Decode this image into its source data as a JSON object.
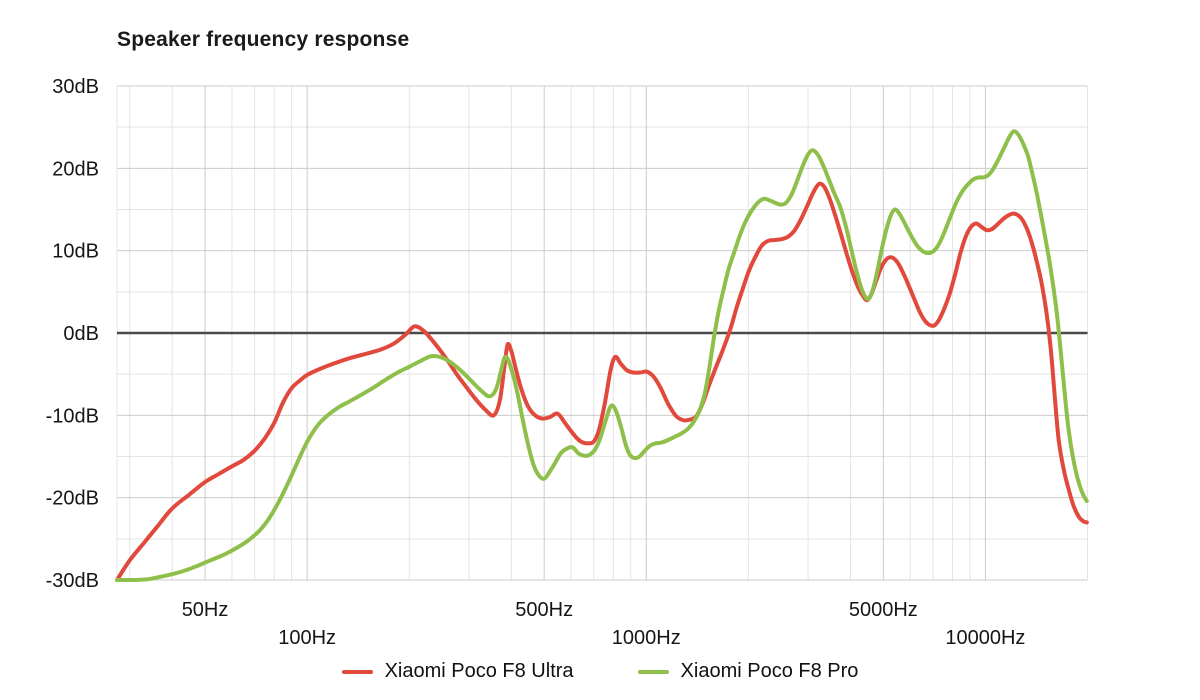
{
  "chart_data": {
    "type": "line",
    "title": "Speaker frequency response",
    "background": "#ffffff",
    "text_color": "#161616",
    "grid_minor_color": "#e4e4e4",
    "grid_major_color": "#cbcbcb",
    "zero_line_color": "#4a4a4a",
    "legend_position": "bottom",
    "x_axis": {
      "scale": "log",
      "unit": "Hz",
      "min": 27.5,
      "max": 20000,
      "labeled_ticks": [
        {
          "label": "50Hz",
          "value": 50,
          "row": 1
        },
        {
          "label": "100Hz",
          "value": 100,
          "row": 2
        },
        {
          "label": "500Hz",
          "value": 500,
          "row": 1
        },
        {
          "label": "1000Hz",
          "value": 1000,
          "row": 2
        },
        {
          "label": "5000Hz",
          "value": 5000,
          "row": 1
        },
        {
          "label": "10000Hz",
          "value": 10000,
          "row": 2
        }
      ],
      "minor_gridlines": [
        30,
        40,
        60,
        70,
        80,
        90,
        200,
        300,
        400,
        600,
        700,
        800,
        900,
        2000,
        3000,
        4000,
        6000,
        7000,
        8000,
        9000,
        20000
      ]
    },
    "y_axis": {
      "unit": "dB",
      "min": -30,
      "max": 30,
      "labeled_ticks": [
        {
          "label": "30dB",
          "value": 30
        },
        {
          "label": "20dB",
          "value": 20
        },
        {
          "label": "10dB",
          "value": 10
        },
        {
          "label": "0dB",
          "value": 0
        },
        {
          "label": "-10dB",
          "value": -10
        },
        {
          "label": "-20dB",
          "value": -20
        },
        {
          "label": "-30dB",
          "value": -30
        }
      ],
      "minor_gridlines": [
        25,
        15,
        5,
        -5,
        -15,
        -25
      ]
    },
    "series": [
      {
        "name": "Xiaomi Poco F8 Ultra",
        "color": "#e0493c",
        "points": [
          [
            27.5,
            -30
          ],
          [
            30,
            -27.6
          ],
          [
            33,
            -25.5
          ],
          [
            36,
            -23.6
          ],
          [
            40,
            -21.3
          ],
          [
            45,
            -19.6
          ],
          [
            50,
            -18.1
          ],
          [
            55,
            -17.1
          ],
          [
            60,
            -16.2
          ],
          [
            65,
            -15.4
          ],
          [
            70,
            -14.3
          ],
          [
            75,
            -12.8
          ],
          [
            80,
            -10.9
          ],
          [
            85,
            -8.4
          ],
          [
            90,
            -6.7
          ],
          [
            95,
            -5.8
          ],
          [
            100,
            -5.1
          ],
          [
            110,
            -4.3
          ],
          [
            120,
            -3.7
          ],
          [
            135,
            -3.0
          ],
          [
            150,
            -2.5
          ],
          [
            165,
            -2.0
          ],
          [
            180,
            -1.3
          ],
          [
            195,
            -0.2
          ],
          [
            207,
            0.8
          ],
          [
            220,
            0.3
          ],
          [
            235,
            -1.0
          ],
          [
            255,
            -2.9
          ],
          [
            275,
            -4.9
          ],
          [
            295,
            -6.6
          ],
          [
            315,
            -8.1
          ],
          [
            335,
            -9.3
          ],
          [
            355,
            -10.0
          ],
          [
            370,
            -8.2
          ],
          [
            382,
            -4.0
          ],
          [
            390,
            -1.4
          ],
          [
            400,
            -2.2
          ],
          [
            412,
            -4.3
          ],
          [
            428,
            -6.8
          ],
          [
            448,
            -8.9
          ],
          [
            470,
            -10.0
          ],
          [
            495,
            -10.4
          ],
          [
            520,
            -10.2
          ],
          [
            548,
            -9.8
          ],
          [
            575,
            -10.9
          ],
          [
            600,
            -11.9
          ],
          [
            625,
            -12.8
          ],
          [
            650,
            -13.3
          ],
          [
            675,
            -13.4
          ],
          [
            700,
            -13.2
          ],
          [
            725,
            -11.8
          ],
          [
            755,
            -8.5
          ],
          [
            785,
            -4.5
          ],
          [
            810,
            -2.9
          ],
          [
            840,
            -3.7
          ],
          [
            875,
            -4.5
          ],
          [
            915,
            -4.8
          ],
          [
            960,
            -4.8
          ],
          [
            1005,
            -4.7
          ],
          [
            1050,
            -5.3
          ],
          [
            1100,
            -6.6
          ],
          [
            1160,
            -8.6
          ],
          [
            1225,
            -10.1
          ],
          [
            1290,
            -10.6
          ],
          [
            1350,
            -10.5
          ],
          [
            1405,
            -10.1
          ],
          [
            1465,
            -8.6
          ],
          [
            1530,
            -6.4
          ],
          [
            1600,
            -4.3
          ],
          [
            1680,
            -2.1
          ],
          [
            1770,
            0.5
          ],
          [
            1850,
            3.2
          ],
          [
            1930,
            5.5
          ],
          [
            2010,
            7.6
          ],
          [
            2100,
            9.3
          ],
          [
            2190,
            10.6
          ],
          [
            2290,
            11.2
          ],
          [
            2400,
            11.3
          ],
          [
            2510,
            11.4
          ],
          [
            2620,
            11.7
          ],
          [
            2730,
            12.4
          ],
          [
            2850,
            13.7
          ],
          [
            2980,
            15.4
          ],
          [
            3110,
            17.1
          ],
          [
            3230,
            18.1
          ],
          [
            3340,
            17.8
          ],
          [
            3460,
            16.5
          ],
          [
            3600,
            14.4
          ],
          [
            3750,
            12.0
          ],
          [
            3900,
            9.6
          ],
          [
            4060,
            7.3
          ],
          [
            4220,
            5.5
          ],
          [
            4370,
            4.4
          ],
          [
            4490,
            4.0
          ],
          [
            4620,
            4.8
          ],
          [
            4760,
            6.3
          ],
          [
            4910,
            7.8
          ],
          [
            5070,
            8.8
          ],
          [
            5230,
            9.2
          ],
          [
            5390,
            9.0
          ],
          [
            5560,
            8.3
          ],
          [
            5750,
            7.1
          ],
          [
            5950,
            5.7
          ],
          [
            6160,
            4.2
          ],
          [
            6380,
            2.7
          ],
          [
            6600,
            1.6
          ],
          [
            6830,
            1.0
          ],
          [
            7060,
            0.9
          ],
          [
            7300,
            1.6
          ],
          [
            7570,
            3.0
          ],
          [
            7850,
            4.8
          ],
          [
            8140,
            7.1
          ],
          [
            8440,
            9.7
          ],
          [
            8750,
            11.7
          ],
          [
            9070,
            12.9
          ],
          [
            9400,
            13.3
          ],
          [
            9730,
            12.9
          ],
          [
            10070,
            12.5
          ],
          [
            10430,
            12.6
          ],
          [
            10800,
            13.1
          ],
          [
            11250,
            13.8
          ],
          [
            11700,
            14.3
          ],
          [
            12150,
            14.5
          ],
          [
            12650,
            14.1
          ],
          [
            13150,
            13.0
          ],
          [
            13650,
            11.2
          ],
          [
            14150,
            8.8
          ],
          [
            14650,
            6.0
          ],
          [
            15100,
            2.8
          ],
          [
            15550,
            -1.5
          ],
          [
            16000,
            -7.5
          ],
          [
            16450,
            -13.0
          ],
          [
            17000,
            -16.5
          ],
          [
            17600,
            -19.0
          ],
          [
            18200,
            -21.0
          ],
          [
            18900,
            -22.4
          ],
          [
            19500,
            -22.9
          ],
          [
            19900,
            -23.0
          ]
        ]
      },
      {
        "name": "Xiaomi Poco F8 Pro",
        "color": "#8fbf4b",
        "points": [
          [
            27.5,
            -30
          ],
          [
            31,
            -30
          ],
          [
            34,
            -29.9
          ],
          [
            37,
            -29.6
          ],
          [
            40,
            -29.3
          ],
          [
            44,
            -28.8
          ],
          [
            48,
            -28.2
          ],
          [
            52,
            -27.6
          ],
          [
            57,
            -26.9
          ],
          [
            62,
            -26.1
          ],
          [
            67,
            -25.2
          ],
          [
            72,
            -24.1
          ],
          [
            77,
            -22.6
          ],
          [
            82,
            -20.7
          ],
          [
            87,
            -18.6
          ],
          [
            92,
            -16.4
          ],
          [
            97,
            -14.3
          ],
          [
            102,
            -12.6
          ],
          [
            108,
            -11.1
          ],
          [
            115,
            -10.0
          ],
          [
            123,
            -9.1
          ],
          [
            132,
            -8.4
          ],
          [
            143,
            -7.6
          ],
          [
            156,
            -6.7
          ],
          [
            170,
            -5.7
          ],
          [
            185,
            -4.8
          ],
          [
            200,
            -4.1
          ],
          [
            216,
            -3.4
          ],
          [
            233,
            -2.8
          ],
          [
            250,
            -3.0
          ],
          [
            268,
            -3.7
          ],
          [
            288,
            -4.8
          ],
          [
            308,
            -6.0
          ],
          [
            328,
            -7.1
          ],
          [
            345,
            -7.7
          ],
          [
            360,
            -6.9
          ],
          [
            372,
            -4.8
          ],
          [
            382,
            -3.0
          ],
          [
            392,
            -3.3
          ],
          [
            404,
            -5.0
          ],
          [
            418,
            -7.5
          ],
          [
            432,
            -10.5
          ],
          [
            448,
            -13.5
          ],
          [
            465,
            -16.0
          ],
          [
            482,
            -17.3
          ],
          [
            500,
            -17.7
          ],
          [
            518,
            -16.9
          ],
          [
            538,
            -15.8
          ],
          [
            560,
            -14.6
          ],
          [
            585,
            -14.0
          ],
          [
            607,
            -13.9
          ],
          [
            630,
            -14.6
          ],
          [
            655,
            -14.9
          ],
          [
            680,
            -14.8
          ],
          [
            705,
            -14.2
          ],
          [
            730,
            -12.9
          ],
          [
            758,
            -10.7
          ],
          [
            783,
            -9.0
          ],
          [
            800,
            -8.9
          ],
          [
            820,
            -9.8
          ],
          [
            845,
            -11.6
          ],
          [
            870,
            -13.6
          ],
          [
            895,
            -14.8
          ],
          [
            925,
            -15.2
          ],
          [
            955,
            -15.0
          ],
          [
            990,
            -14.3
          ],
          [
            1025,
            -13.7
          ],
          [
            1065,
            -13.4
          ],
          [
            1110,
            -13.3
          ],
          [
            1160,
            -13.0
          ],
          [
            1215,
            -12.6
          ],
          [
            1270,
            -12.2
          ],
          [
            1330,
            -11.6
          ],
          [
            1385,
            -10.7
          ],
          [
            1440,
            -9.3
          ],
          [
            1490,
            -7.2
          ],
          [
            1535,
            -4.2
          ],
          [
            1580,
            -0.8
          ],
          [
            1630,
            2.4
          ],
          [
            1690,
            5.3
          ],
          [
            1750,
            7.8
          ],
          [
            1820,
            9.9
          ],
          [
            1890,
            11.9
          ],
          [
            1960,
            13.5
          ],
          [
            2040,
            14.8
          ],
          [
            2130,
            15.8
          ],
          [
            2220,
            16.3
          ],
          [
            2310,
            16.1
          ],
          [
            2400,
            15.8
          ],
          [
            2490,
            15.6
          ],
          [
            2580,
            15.8
          ],
          [
            2680,
            16.8
          ],
          [
            2780,
            18.4
          ],
          [
            2880,
            20.1
          ],
          [
            2990,
            21.6
          ],
          [
            3090,
            22.2
          ],
          [
            3200,
            21.7
          ],
          [
            3320,
            20.4
          ],
          [
            3450,
            18.7
          ],
          [
            3590,
            16.9
          ],
          [
            3730,
            15.3
          ],
          [
            3880,
            12.9
          ],
          [
            4030,
            10.0
          ],
          [
            4180,
            7.3
          ],
          [
            4330,
            5.2
          ],
          [
            4460,
            4.2
          ],
          [
            4560,
            4.3
          ],
          [
            4680,
            5.6
          ],
          [
            4810,
            7.7
          ],
          [
            4950,
            10.2
          ],
          [
            5100,
            12.5
          ],
          [
            5250,
            14.2
          ],
          [
            5400,
            15.0
          ],
          [
            5550,
            14.6
          ],
          [
            5720,
            13.7
          ],
          [
            5900,
            12.6
          ],
          [
            6100,
            11.5
          ],
          [
            6320,
            10.5
          ],
          [
            6550,
            9.9
          ],
          [
            6780,
            9.7
          ],
          [
            7010,
            9.9
          ],
          [
            7250,
            10.6
          ],
          [
            7510,
            11.9
          ],
          [
            7780,
            13.5
          ],
          [
            8060,
            15.1
          ],
          [
            8350,
            16.5
          ],
          [
            8650,
            17.5
          ],
          [
            8950,
            18.2
          ],
          [
            9250,
            18.7
          ],
          [
            9550,
            18.9
          ],
          [
            9850,
            18.9
          ],
          [
            10150,
            19.1
          ],
          [
            10500,
            19.8
          ],
          [
            10900,
            21.0
          ],
          [
            11350,
            22.5
          ],
          [
            11800,
            23.9
          ],
          [
            12150,
            24.5
          ],
          [
            12550,
            24.0
          ],
          [
            12950,
            22.9
          ],
          [
            13350,
            21.5
          ],
          [
            13750,
            19.4
          ],
          [
            14200,
            16.8
          ],
          [
            14650,
            13.9
          ],
          [
            15100,
            11.0
          ],
          [
            15500,
            8.3
          ],
          [
            15900,
            5.3
          ],
          [
            16300,
            1.8
          ],
          [
            16700,
            -2.5
          ],
          [
            17150,
            -7.5
          ],
          [
            17600,
            -11.8
          ],
          [
            18100,
            -15.0
          ],
          [
            18600,
            -17.3
          ],
          [
            19100,
            -18.9
          ],
          [
            19500,
            -19.8
          ],
          [
            19900,
            -20.4
          ]
        ]
      }
    ]
  }
}
